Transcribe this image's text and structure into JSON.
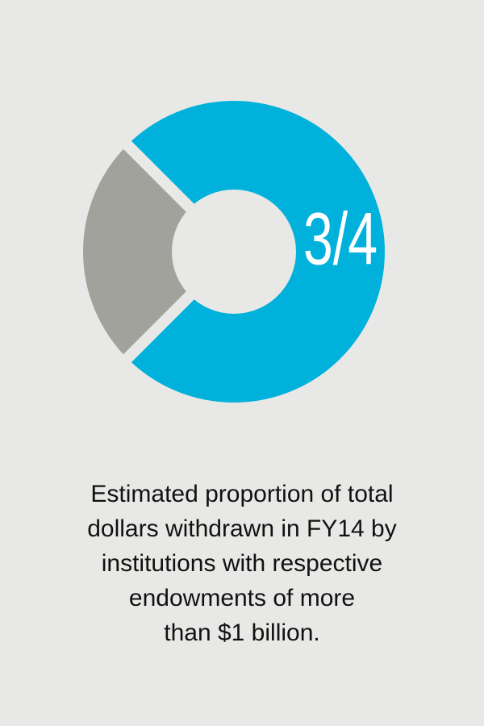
{
  "chart_data": {
    "type": "pie",
    "values": [
      0.75,
      0.25
    ],
    "value_labels": [
      "3/4",
      null
    ],
    "colors": [
      "#00b1dc",
      "#a2a29d"
    ],
    "caption": [
      "Estimated proportion of total",
      "dollars withdrawn in FY14 by",
      "institutions with respective",
      "endowments of more",
      "than $1 billion."
    ]
  }
}
